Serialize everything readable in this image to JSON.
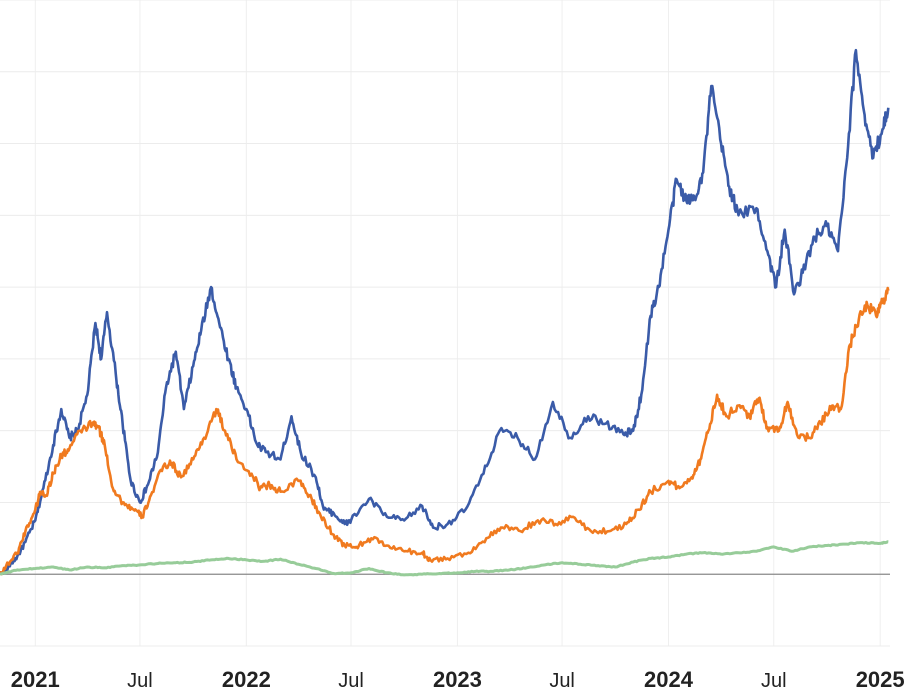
{
  "chart_data": {
    "type": "line",
    "grid": true,
    "legend": "none",
    "x_ticks": [
      {
        "label": "2021",
        "date": "2021-01-01",
        "major": true
      },
      {
        "label": "Jul",
        "date": "2021-07-01",
        "major": false
      },
      {
        "label": "2022",
        "date": "2022-01-01",
        "major": true
      },
      {
        "label": "Jul",
        "date": "2022-07-01",
        "major": false
      },
      {
        "label": "2023",
        "date": "2023-01-01",
        "major": true
      },
      {
        "label": "Jul",
        "date": "2023-07-01",
        "major": false
      },
      {
        "label": "2024",
        "date": "2024-01-01",
        "major": true
      },
      {
        "label": "Jul",
        "date": "2024-07-01",
        "major": false
      },
      {
        "label": "2025",
        "date": "2025-01-01",
        "major": true
      }
    ],
    "xlim": [
      "2020-11-01",
      "2025-01-18"
    ],
    "ylim": [
      -1,
      8
    ],
    "y_gridlines": [
      -1,
      0,
      1,
      2,
      3,
      4,
      5,
      6,
      7,
      8
    ],
    "baseline": 0,
    "series": [
      {
        "color": "#3a5ba8",
        "points": [
          [
            "2020-11-01",
            0.0
          ],
          [
            "2020-11-15",
            0.1
          ],
          [
            "2020-12-01",
            0.25
          ],
          [
            "2020-12-15",
            0.45
          ],
          [
            "2021-01-01",
            0.75
          ],
          [
            "2021-01-15",
            1.2
          ],
          [
            "2021-02-01",
            1.8
          ],
          [
            "2021-02-15",
            2.3
          ],
          [
            "2021-03-01",
            1.9
          ],
          [
            "2021-03-15",
            2.0
          ],
          [
            "2021-04-01",
            2.5
          ],
          [
            "2021-04-15",
            3.5
          ],
          [
            "2021-04-25",
            3.0
          ],
          [
            "2021-05-05",
            3.65
          ],
          [
            "2021-05-20",
            2.8
          ],
          [
            "2021-06-01",
            2.1
          ],
          [
            "2021-06-15",
            1.3
          ],
          [
            "2021-07-01",
            1.0
          ],
          [
            "2021-07-15",
            1.25
          ],
          [
            "2021-08-01",
            1.7
          ],
          [
            "2021-08-15",
            2.6
          ],
          [
            "2021-09-01",
            3.1
          ],
          [
            "2021-09-15",
            2.3
          ],
          [
            "2021-10-01",
            2.9
          ],
          [
            "2021-10-15",
            3.4
          ],
          [
            "2021-11-01",
            4.0
          ],
          [
            "2021-11-15",
            3.5
          ],
          [
            "2021-12-01",
            3.0
          ],
          [
            "2021-12-15",
            2.6
          ],
          [
            "2022-01-01",
            2.3
          ],
          [
            "2022-01-20",
            1.8
          ],
          [
            "2022-02-05",
            1.7
          ],
          [
            "2022-03-01",
            1.6
          ],
          [
            "2022-03-20",
            2.2
          ],
          [
            "2022-04-05",
            1.7
          ],
          [
            "2022-05-01",
            1.35
          ],
          [
            "2022-05-15",
            0.9
          ],
          [
            "2022-06-01",
            0.85
          ],
          [
            "2022-06-20",
            0.7
          ],
          [
            "2022-07-01",
            0.75
          ],
          [
            "2022-08-01",
            1.05
          ],
          [
            "2022-09-01",
            0.8
          ],
          [
            "2022-10-01",
            0.75
          ],
          [
            "2022-11-01",
            0.95
          ],
          [
            "2022-11-20",
            0.65
          ],
          [
            "2022-12-15",
            0.7
          ],
          [
            "2023-01-15",
            0.9
          ],
          [
            "2023-02-15",
            1.4
          ],
          [
            "2023-03-15",
            2.0
          ],
          [
            "2023-04-15",
            1.9
          ],
          [
            "2023-05-15",
            1.6
          ],
          [
            "2023-06-15",
            2.4
          ],
          [
            "2023-07-15",
            1.9
          ],
          [
            "2023-08-15",
            2.2
          ],
          [
            "2023-09-15",
            2.1
          ],
          [
            "2023-10-15",
            1.95
          ],
          [
            "2023-11-01",
            2.0
          ],
          [
            "2023-11-15",
            2.5
          ],
          [
            "2023-12-01",
            3.6
          ],
          [
            "2023-12-15",
            4.0
          ],
          [
            "2024-01-01",
            4.8
          ],
          [
            "2024-01-15",
            5.5
          ],
          [
            "2024-02-01",
            5.2
          ],
          [
            "2024-02-15",
            5.25
          ],
          [
            "2024-03-01",
            5.6
          ],
          [
            "2024-03-15",
            6.8
          ],
          [
            "2024-04-01",
            6.0
          ],
          [
            "2024-04-15",
            5.4
          ],
          [
            "2024-05-01",
            5.0
          ],
          [
            "2024-06-01",
            5.1
          ],
          [
            "2024-06-20",
            4.5
          ],
          [
            "2024-07-05",
            4.0
          ],
          [
            "2024-07-20",
            4.8
          ],
          [
            "2024-08-05",
            3.9
          ],
          [
            "2024-08-20",
            4.2
          ],
          [
            "2024-09-10",
            4.7
          ],
          [
            "2024-10-01",
            4.85
          ],
          [
            "2024-10-20",
            4.5
          ],
          [
            "2024-11-05",
            5.8
          ],
          [
            "2024-11-20",
            7.3
          ],
          [
            "2024-12-05",
            6.4
          ],
          [
            "2024-12-20",
            5.8
          ],
          [
            "2025-01-05",
            6.2
          ],
          [
            "2025-01-15",
            6.5
          ]
        ]
      },
      {
        "color": "#f07a1f",
        "points": [
          [
            "2020-11-01",
            0.0
          ],
          [
            "2020-11-15",
            0.15
          ],
          [
            "2020-12-01",
            0.3
          ],
          [
            "2020-12-15",
            0.6
          ],
          [
            "2021-01-01",
            0.9
          ],
          [
            "2021-01-10",
            1.15
          ],
          [
            "2021-01-20",
            1.1
          ],
          [
            "2021-02-01",
            1.4
          ],
          [
            "2021-02-15",
            1.65
          ],
          [
            "2021-03-01",
            1.75
          ],
          [
            "2021-03-20",
            2.0
          ],
          [
            "2021-04-10",
            2.1
          ],
          [
            "2021-04-20",
            2.05
          ],
          [
            "2021-05-01",
            1.8
          ],
          [
            "2021-05-15",
            1.2
          ],
          [
            "2021-06-01",
            1.0
          ],
          [
            "2021-06-20",
            0.9
          ],
          [
            "2021-07-05",
            0.8
          ],
          [
            "2021-07-20",
            1.1
          ],
          [
            "2021-08-10",
            1.5
          ],
          [
            "2021-08-25",
            1.55
          ],
          [
            "2021-09-10",
            1.35
          ],
          [
            "2021-10-01",
            1.6
          ],
          [
            "2021-10-20",
            1.9
          ],
          [
            "2021-11-10",
            2.3
          ],
          [
            "2021-11-25",
            2.0
          ],
          [
            "2021-12-15",
            1.6
          ],
          [
            "2022-01-10",
            1.4
          ],
          [
            "2022-01-25",
            1.2
          ],
          [
            "2022-02-10",
            1.25
          ],
          [
            "2022-03-01",
            1.15
          ],
          [
            "2022-04-01",
            1.3
          ],
          [
            "2022-04-20",
            1.1
          ],
          [
            "2022-05-10",
            0.8
          ],
          [
            "2022-06-01",
            0.55
          ],
          [
            "2022-06-20",
            0.4
          ],
          [
            "2022-07-10",
            0.38
          ],
          [
            "2022-08-05",
            0.5
          ],
          [
            "2022-09-01",
            0.4
          ],
          [
            "2022-10-01",
            0.32
          ],
          [
            "2022-11-01",
            0.3
          ],
          [
            "2022-11-15",
            0.2
          ],
          [
            "2022-12-15",
            0.22
          ],
          [
            "2023-01-20",
            0.3
          ],
          [
            "2023-02-20",
            0.5
          ],
          [
            "2023-03-20",
            0.65
          ],
          [
            "2023-04-20",
            0.6
          ],
          [
            "2023-05-20",
            0.75
          ],
          [
            "2023-06-20",
            0.7
          ],
          [
            "2023-07-20",
            0.8
          ],
          [
            "2023-08-20",
            0.6
          ],
          [
            "2023-09-20",
            0.6
          ],
          [
            "2023-10-20",
            0.7
          ],
          [
            "2023-11-10",
            0.9
          ],
          [
            "2023-12-01",
            1.15
          ],
          [
            "2024-01-01",
            1.3
          ],
          [
            "2024-01-20",
            1.2
          ],
          [
            "2024-02-10",
            1.35
          ],
          [
            "2024-02-25",
            1.6
          ],
          [
            "2024-03-10",
            2.0
          ],
          [
            "2024-03-25",
            2.5
          ],
          [
            "2024-04-10",
            2.2
          ],
          [
            "2024-05-01",
            2.35
          ],
          [
            "2024-05-20",
            2.2
          ],
          [
            "2024-06-05",
            2.45
          ],
          [
            "2024-06-20",
            2.05
          ],
          [
            "2024-07-10",
            2.0
          ],
          [
            "2024-07-25",
            2.4
          ],
          [
            "2024-08-10",
            1.95
          ],
          [
            "2024-09-01",
            1.9
          ],
          [
            "2024-09-20",
            2.1
          ],
          [
            "2024-10-10",
            2.35
          ],
          [
            "2024-10-25",
            2.3
          ],
          [
            "2024-11-10",
            3.2
          ],
          [
            "2024-11-25",
            3.55
          ],
          [
            "2024-12-10",
            3.75
          ],
          [
            "2024-12-25",
            3.6
          ],
          [
            "2025-01-05",
            3.8
          ],
          [
            "2025-01-15",
            3.95
          ]
        ]
      },
      {
        "color": "#97cc99",
        "points": [
          [
            "2020-11-01",
            0.0
          ],
          [
            "2020-12-01",
            0.06
          ],
          [
            "2021-01-01",
            0.08
          ],
          [
            "2021-02-01",
            0.1
          ],
          [
            "2021-03-01",
            0.06
          ],
          [
            "2021-04-01",
            0.1
          ],
          [
            "2021-05-01",
            0.09
          ],
          [
            "2021-06-01",
            0.12
          ],
          [
            "2021-07-01",
            0.13
          ],
          [
            "2021-08-01",
            0.15
          ],
          [
            "2021-09-01",
            0.16
          ],
          [
            "2021-10-01",
            0.17
          ],
          [
            "2021-11-01",
            0.2
          ],
          [
            "2021-12-01",
            0.22
          ],
          [
            "2022-01-01",
            0.2
          ],
          [
            "2022-02-01",
            0.18
          ],
          [
            "2022-03-01",
            0.21
          ],
          [
            "2022-04-01",
            0.14
          ],
          [
            "2022-05-01",
            0.08
          ],
          [
            "2022-06-01",
            0.01
          ],
          [
            "2022-07-01",
            0.02
          ],
          [
            "2022-08-01",
            0.08
          ],
          [
            "2022-09-01",
            0.02
          ],
          [
            "2022-10-01",
            -0.01
          ],
          [
            "2022-11-01",
            0.0
          ],
          [
            "2022-12-01",
            0.01
          ],
          [
            "2023-01-01",
            0.02
          ],
          [
            "2023-02-01",
            0.04
          ],
          [
            "2023-03-01",
            0.04
          ],
          [
            "2023-04-01",
            0.06
          ],
          [
            "2023-05-01",
            0.09
          ],
          [
            "2023-06-01",
            0.13
          ],
          [
            "2023-07-01",
            0.16
          ],
          [
            "2023-08-01",
            0.14
          ],
          [
            "2023-09-01",
            0.12
          ],
          [
            "2023-10-01",
            0.1
          ],
          [
            "2023-11-01",
            0.17
          ],
          [
            "2023-12-01",
            0.22
          ],
          [
            "2024-01-01",
            0.24
          ],
          [
            "2024-02-01",
            0.28
          ],
          [
            "2024-03-01",
            0.3
          ],
          [
            "2024-04-01",
            0.28
          ],
          [
            "2024-05-01",
            0.3
          ],
          [
            "2024-06-01",
            0.32
          ],
          [
            "2024-07-01",
            0.38
          ],
          [
            "2024-08-01",
            0.32
          ],
          [
            "2024-09-01",
            0.38
          ],
          [
            "2024-10-01",
            0.4
          ],
          [
            "2024-11-01",
            0.42
          ],
          [
            "2024-12-01",
            0.44
          ],
          [
            "2025-01-01",
            0.43
          ],
          [
            "2025-01-15",
            0.45
          ]
        ]
      }
    ]
  }
}
